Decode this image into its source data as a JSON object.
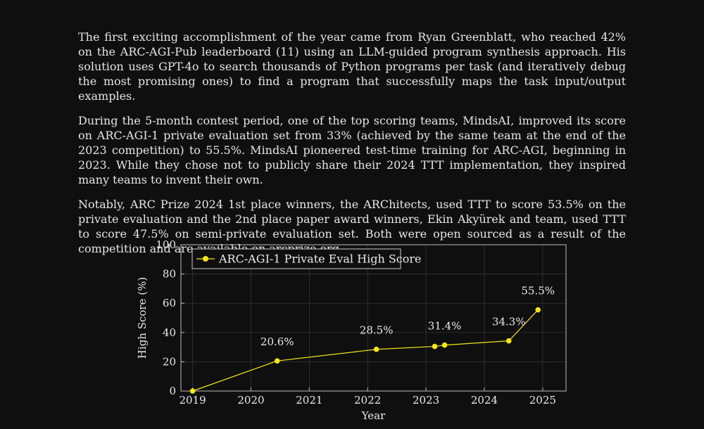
{
  "paragraphs": [
    "The first exciting accomplishment of the year came from Ryan Greenblatt, who reached 42% on the ARC-AGI-Pub leaderboard (11) using an LLM-guided program synthesis approach. His solution uses GPT-4o to search thousands of Python programs per task (and iteratively debug the most promising ones) to find a program that successfully maps the task input/output examples.",
    "During the 5-month contest period, one of the top scoring teams, MindsAI, improved its score on ARC-AGI-1 private evaluation set from 33% (achieved by the same team at the end of the 2023 competition) to 55.5%. MindsAI pioneered test-time training for ARC-AGI, beginning in 2023. While they chose not to publicly share their 2024 TTT implementation, they inspired many teams to invent their own.",
    "Notably, ARC Prize 2024 1st place winners, the ARChitects, used TTT to score 53.5% on the private evaluation and the 2nd place paper award winners, Ekin Akyürek and team, used TTT to score 47.5% on semi-private evaluation set. Both were open sourced as a result of the competition and are available on arcprize.org."
  ],
  "chart_data": {
    "type": "line",
    "title": "",
    "xlabel": "Year",
    "ylabel": "High Score (%)",
    "xlim": [
      2018.8,
      2025.4
    ],
    "ylim": [
      0,
      100
    ],
    "xticks": [
      2019,
      2020,
      2021,
      2022,
      2023,
      2024,
      2025
    ],
    "yticks": [
      0,
      20,
      40,
      60,
      80,
      100
    ],
    "grid": true,
    "legend_position": "top-left",
    "series": [
      {
        "name": "ARC-AGI-1 Private Eval High Score",
        "color": "#f5e61a",
        "points": [
          {
            "x": 2019.0,
            "y": 0
          },
          {
            "x": 2020.45,
            "y": 20.6
          },
          {
            "x": 2022.15,
            "y": 28.5
          },
          {
            "x": 2023.15,
            "y": 30.5
          },
          {
            "x": 2023.32,
            "y": 31.4
          },
          {
            "x": 2024.42,
            "y": 34.3
          },
          {
            "x": 2024.92,
            "y": 55.5
          }
        ]
      }
    ],
    "annotations": [
      {
        "text": "20.6%",
        "x": 2020.45,
        "y": 20.6
      },
      {
        "text": "28.5%",
        "x": 2022.15,
        "y": 28.5
      },
      {
        "text": "31.4%",
        "x": 2023.32,
        "y": 31.4
      },
      {
        "text": "34.3%",
        "x": 2024.42,
        "y": 34.3
      },
      {
        "text": "55.5%",
        "x": 2024.92,
        "y": 55.5
      }
    ]
  }
}
